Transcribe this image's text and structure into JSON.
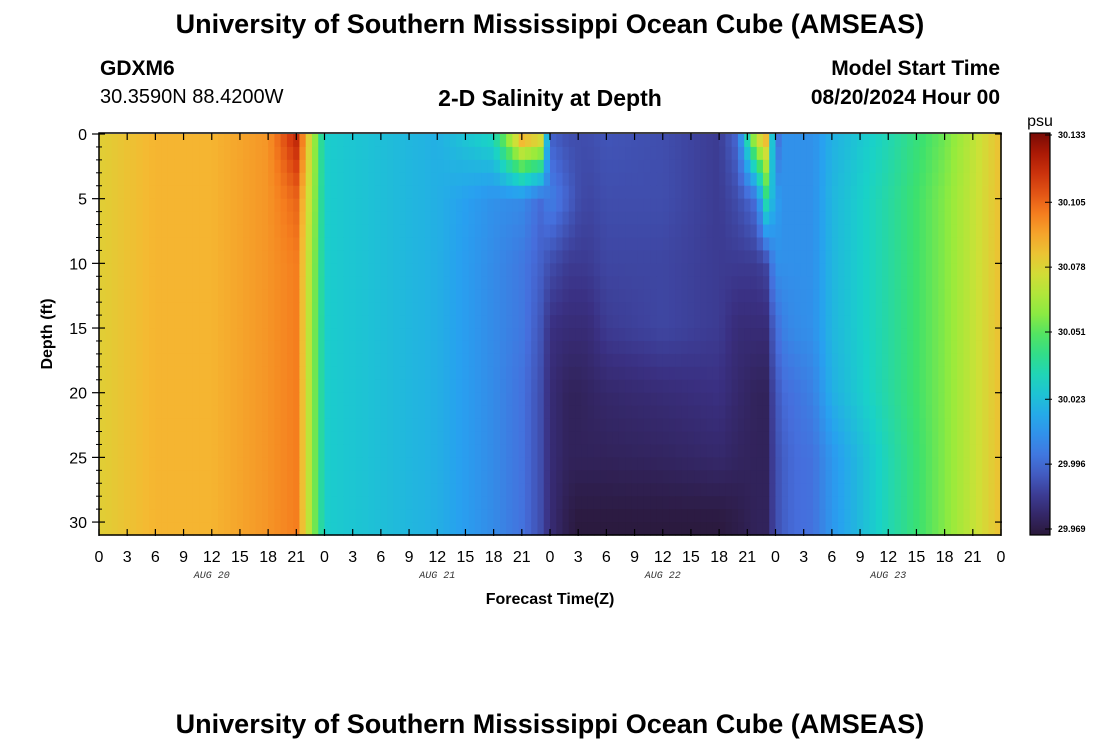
{
  "header": {
    "title_top": "University of Southern Mississippi Ocean Cube (AMSEAS)",
    "station_id": "GDXM6",
    "station_coords": "30.3590N  88.4200W",
    "plot_title": "2-D Salinity at Depth",
    "start_label": "Model Start Time",
    "start_value": "08/20/2024 Hour 00",
    "title_bottom": "University of Southern Mississippi Ocean Cube (AMSEAS)"
  },
  "chart_data": {
    "type": "heatmap",
    "title": "2-D Salinity at Depth",
    "xlabel": "Forecast Time(Z)",
    "ylabel": "Depth (ft)",
    "units": "psu",
    "x_hours": [
      0,
      6,
      12,
      18,
      21,
      23,
      24,
      26,
      30,
      36,
      42,
      45,
      47,
      48,
      50,
      51,
      52,
      54,
      60,
      66,
      68,
      70,
      71,
      72,
      73,
      74,
      76,
      78,
      84,
      90,
      96
    ],
    "depths_ft": [
      0,
      5,
      10,
      15,
      20,
      25,
      30
    ],
    "values": [
      [
        30.08,
        30.088,
        30.088,
        30.095,
        30.12,
        30.06,
        30.03,
        30.028,
        30.025,
        30.02,
        30.035,
        30.095,
        30.085,
        29.995,
        29.99,
        29.99,
        29.99,
        29.992,
        29.99,
        29.985,
        29.998,
        30.08,
        30.09,
        29.995,
        30.01,
        30.01,
        30.01,
        30.02,
        30.035,
        30.055,
        30.085
      ],
      [
        30.08,
        30.088,
        30.088,
        30.095,
        30.105,
        30.058,
        30.03,
        30.028,
        30.025,
        30.02,
        30.01,
        30.008,
        29.998,
        30.005,
        29.995,
        29.99,
        29.988,
        29.99,
        29.99,
        29.985,
        29.99,
        30.0,
        30.04,
        30.015,
        30.01,
        30.01,
        30.01,
        30.022,
        30.038,
        30.058,
        30.085
      ],
      [
        30.08,
        30.088,
        30.088,
        30.095,
        30.1,
        30.056,
        30.03,
        30.028,
        30.025,
        30.02,
        30.008,
        30.002,
        29.995,
        29.99,
        29.985,
        29.985,
        29.985,
        29.988,
        29.988,
        29.985,
        29.985,
        29.985,
        29.988,
        30.01,
        30.01,
        30.01,
        30.01,
        30.022,
        30.038,
        30.058,
        30.085
      ],
      [
        30.08,
        30.088,
        30.088,
        30.095,
        30.1,
        30.055,
        30.03,
        30.028,
        30.025,
        30.02,
        30.008,
        30.002,
        29.992,
        29.982,
        29.98,
        29.98,
        29.98,
        29.985,
        29.988,
        29.985,
        29.98,
        29.98,
        29.98,
        29.998,
        30.005,
        30.008,
        30.01,
        30.022,
        30.038,
        30.058,
        30.085
      ],
      [
        30.08,
        30.088,
        30.088,
        30.095,
        30.1,
        30.055,
        30.03,
        30.028,
        30.025,
        30.02,
        30.008,
        30.0,
        29.99,
        29.98,
        29.975,
        29.975,
        29.976,
        29.978,
        29.98,
        29.982,
        29.978,
        29.975,
        29.975,
        29.992,
        29.998,
        30.0,
        30.005,
        30.02,
        30.038,
        30.058,
        30.085
      ],
      [
        30.08,
        30.088,
        30.088,
        30.095,
        30.1,
        30.055,
        30.03,
        30.028,
        30.025,
        30.02,
        30.008,
        30.0,
        29.99,
        29.98,
        29.975,
        29.975,
        29.975,
        29.975,
        29.976,
        29.978,
        29.976,
        29.975,
        29.975,
        29.99,
        29.995,
        29.998,
        30.0,
        30.012,
        30.035,
        30.058,
        30.085
      ],
      [
        30.08,
        30.088,
        30.088,
        30.095,
        30.1,
        30.055,
        30.03,
        30.028,
        30.025,
        30.02,
        30.008,
        30.0,
        29.99,
        29.98,
        29.972,
        29.97,
        29.97,
        29.97,
        29.97,
        29.97,
        29.972,
        29.975,
        29.975,
        29.99,
        29.995,
        29.998,
        30.0,
        30.012,
        30.035,
        30.058,
        30.085
      ]
    ],
    "xlim": [
      0,
      96
    ],
    "ylim": [
      0,
      31
    ],
    "x_tick_labels": [
      "0",
      "3",
      "6",
      "9",
      "12",
      "15",
      "18",
      "21",
      "0",
      "3",
      "6",
      "9",
      "12",
      "15",
      "18",
      "21",
      "0",
      "3",
      "6",
      "9",
      "12",
      "15",
      "18",
      "21",
      "0",
      "3",
      "6",
      "9",
      "12",
      "15",
      "18",
      "21",
      "0"
    ],
    "y_tick_labels": [
      "0",
      "5",
      "10",
      "15",
      "20",
      "25",
      "30"
    ],
    "day_labels": [
      "AUG 20",
      "AUG 21",
      "AUG 22",
      "AUG 23"
    ],
    "colorbar": {
      "label": "psu",
      "min": 29.969,
      "max": 30.133,
      "tick_labels": [
        "30.133",
        "30.105",
        "30.078",
        "30.051",
        "30.023",
        "29.996",
        "29.969"
      ]
    }
  }
}
